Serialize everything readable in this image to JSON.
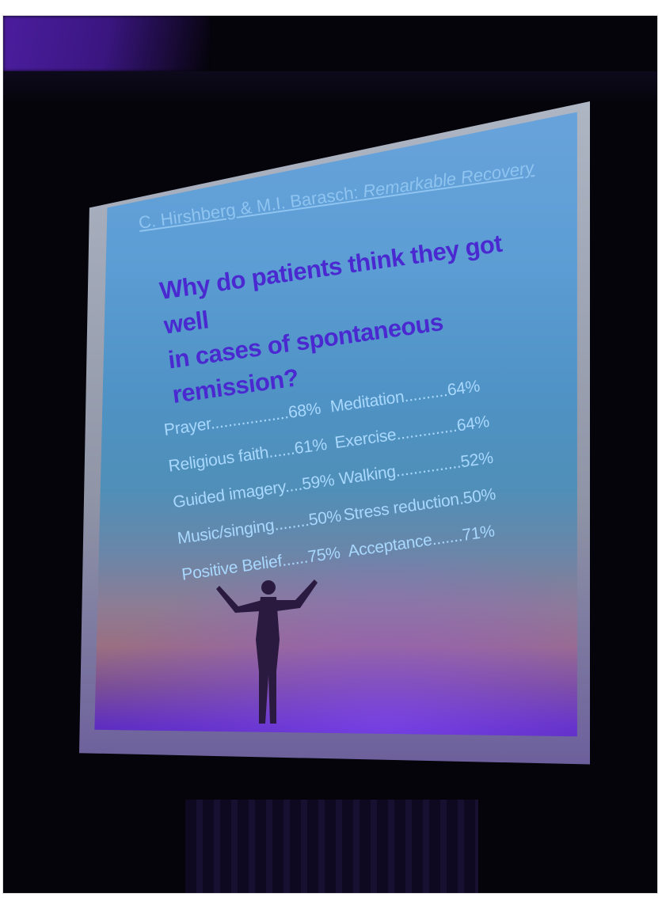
{
  "slide": {
    "citation_authors": "C. Hirshberg & M.I. Barasch:",
    "citation_book": "Remarkable Recovery",
    "headline_line1": "Why do patients think they got well",
    "headline_line2": "in cases of spontaneous remission?",
    "left_column": [
      {
        "text": "Prayer..................68%"
      },
      {
        "text": "Religious faith......61%"
      },
      {
        "text": "Guided imagery....59%"
      },
      {
        "text": "Music/singing........50%"
      },
      {
        "text": "Positive Belief......75%"
      }
    ],
    "right_column": [
      {
        "text": "Meditation..........64%"
      },
      {
        "text": "Exercise..............64%"
      },
      {
        "text": "Walking...............52%"
      },
      {
        "text": "Stress reduction.50%"
      },
      {
        "text": "Acceptance.......71%"
      }
    ]
  },
  "colors": {
    "headline": "#4a2ad0",
    "stats": "#a9d8ff",
    "citation": "#8fc4f0",
    "stage_light": "#4b1d9e"
  }
}
